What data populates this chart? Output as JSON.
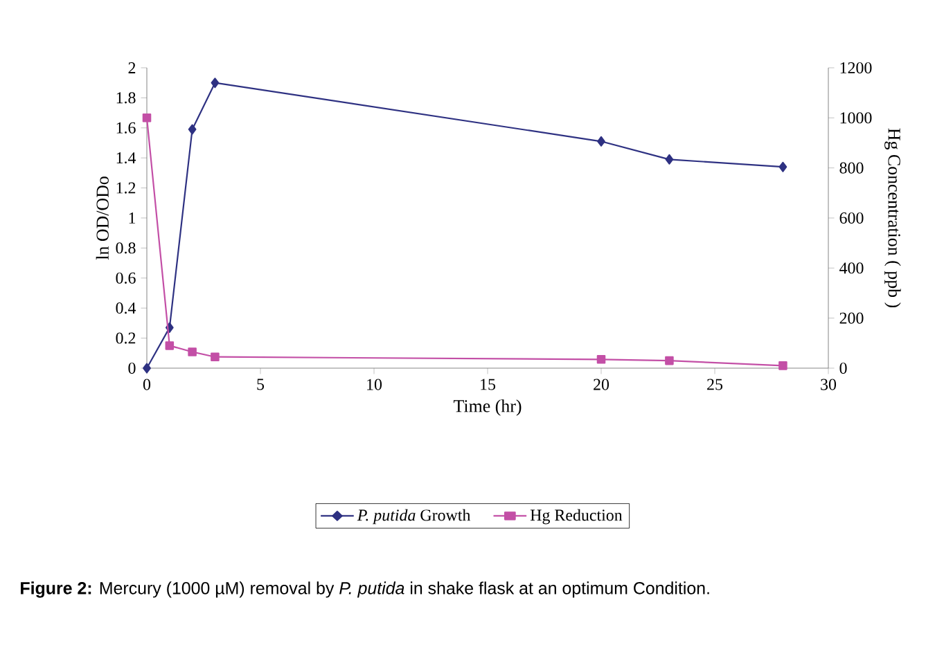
{
  "chart_data": {
    "type": "line",
    "xlabel": "Time (hr)",
    "ylabel": "ln OD/ODo",
    "y2label": "Hg Concentration ( ppb )",
    "x": [
      0,
      1,
      2,
      3,
      20,
      23,
      28
    ],
    "series": [
      {
        "name": "*P. putida* Growth",
        "color": "#2e3182",
        "marker": "diamond",
        "values": [
          0,
          0.27,
          1.59,
          1.9,
          1.51,
          1.39,
          1.34
        ]
      },
      {
        "name": "Hg Reduction",
        "color": "#c34fa6",
        "marker": "square",
        "axis": "y2",
        "values": [
          1000,
          90,
          65,
          45,
          35,
          30,
          10
        ]
      }
    ],
    "xlim": [
      0,
      30
    ],
    "xticks": [
      0,
      5,
      10,
      15,
      20,
      25,
      30
    ],
    "ylim": [
      0,
      2
    ],
    "yticks": [
      0,
      0.2,
      0.4,
      0.6,
      0.8,
      1,
      1.2,
      1.4,
      1.6,
      1.8,
      2
    ],
    "y2lim": [
      0,
      1200
    ],
    "y2ticks": [
      0,
      200,
      400,
      600,
      800,
      1000,
      1200
    ],
    "legend": "bottom",
    "annotations": [
      "**Figure 2:** Mercury (1000 µM) removal by *P. putida* in shake flask at an optimum Condition."
    ]
  }
}
